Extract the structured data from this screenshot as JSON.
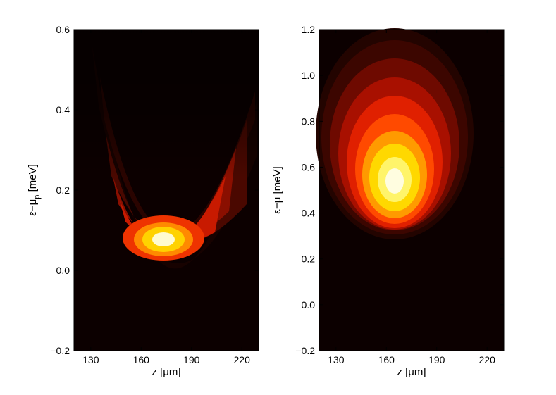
{
  "chart_data": [
    {
      "type": "heatmap",
      "colormap": "hot",
      "xlabel": "z [μm]",
      "ylabel_main": "ε−μ",
      "ylabel_sub": "p",
      "ylabel_unit": " [meV]",
      "xlim": [
        120,
        230
      ],
      "ylim": [
        -0.2,
        0.6
      ],
      "xticks": [
        130,
        160,
        190,
        220
      ],
      "yticks": [
        -0.2,
        0.0,
        0.2,
        0.4,
        0.6
      ],
      "ytick_labels": [
        "−0.2",
        "0.0",
        "0.2",
        "0.4",
        "0.6"
      ],
      "features": {
        "bright_spot": {
          "z": 174,
          "energy": 0.08
        },
        "parabolic_edge_vertex": {
          "z": 174,
          "energy": 0.02
        },
        "edge_at_z_130": 0.54,
        "edge_at_z_225": 0.42
      }
    },
    {
      "type": "heatmap",
      "colormap": "hot",
      "xlabel": "z [μm]",
      "ylabel_main": "ε−μ",
      "ylabel_sub": "",
      "ylabel_unit": " [meV]",
      "ylabel_full": "ε−μ_ [meV]",
      "xlim": [
        120,
        230
      ],
      "ylim": [
        -0.2,
        1.2
      ],
      "xticks": [
        130,
        160,
        190,
        220
      ],
      "yticks": [
        -0.2,
        0.0,
        0.2,
        0.4,
        0.6,
        0.8,
        1.0,
        1.2
      ],
      "ytick_labels": [
        "−0.2",
        "0.0",
        "0.2",
        "0.4",
        "0.6",
        "0.8",
        "1.0",
        "1.2"
      ],
      "features": {
        "bright_spot": {
          "z": 165,
          "energy": 0.55
        },
        "lower_edge": {
          "z": 165,
          "energy": 0.32
        }
      }
    }
  ]
}
